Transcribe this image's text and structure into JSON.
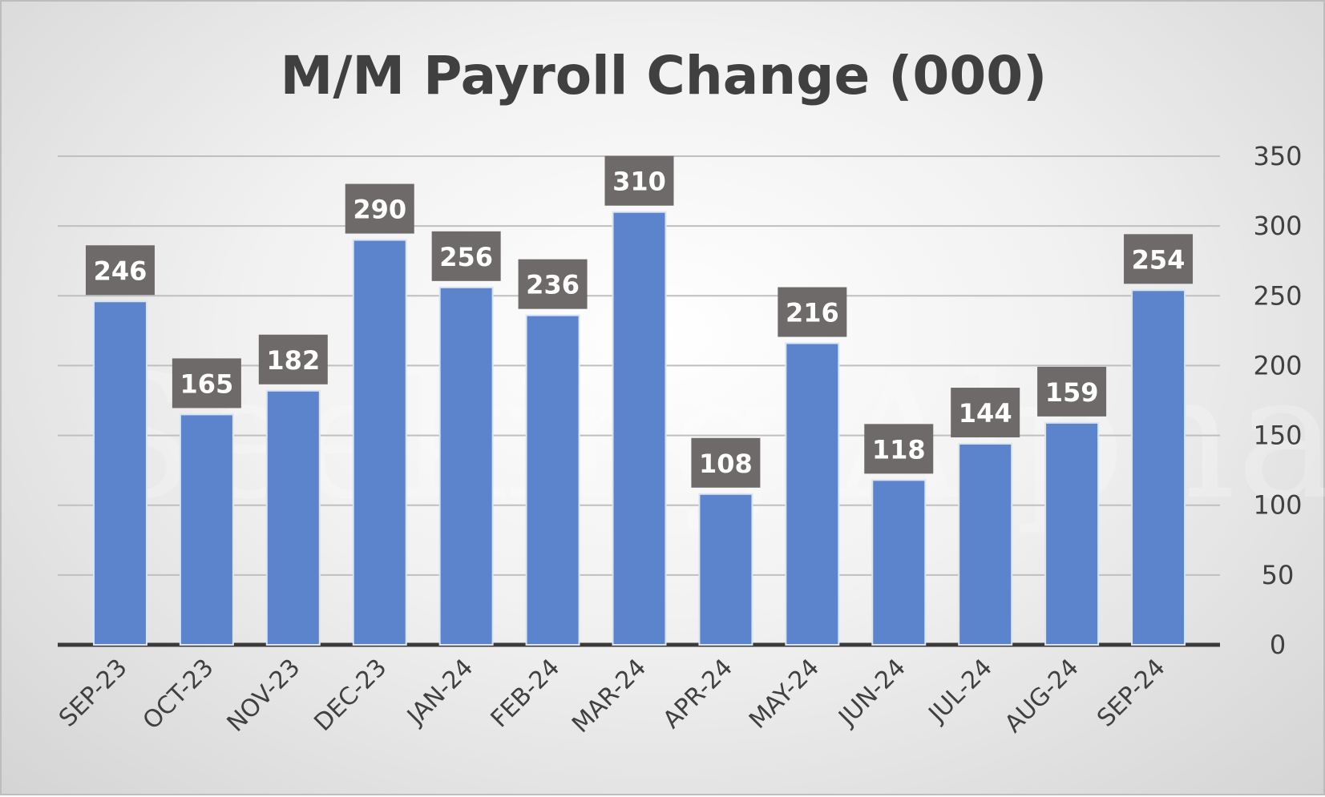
{
  "chart_data": {
    "type": "bar",
    "title": "M/M Payroll Change (000)",
    "categories": [
      "SEP-23",
      "OCT-23",
      "NOV-23",
      "DEC-23",
      "JAN-24",
      "FEB-24",
      "MAR-24",
      "APR-24",
      "MAY-24",
      "JUN-24",
      "JUL-24",
      "AUG-24",
      "SEP-24"
    ],
    "values": [
      246,
      165,
      182,
      290,
      256,
      236,
      310,
      108,
      216,
      118,
      144,
      159,
      254
    ],
    "ylim": [
      0,
      350
    ],
    "yticks": [
      0,
      50,
      100,
      150,
      200,
      250,
      300,
      350
    ],
    "y_axis_side": "right",
    "grid": true,
    "data_labels": true,
    "legend": "none",
    "watermark": "Seeking Alpha"
  },
  "colors": {
    "bar": "#5b84cc",
    "bar_edge": "#dbe4f3",
    "label_box": "#6e6a69",
    "grid": "#bfbfbf",
    "baseline": "#3a3a3a",
    "text": "#404040"
  }
}
